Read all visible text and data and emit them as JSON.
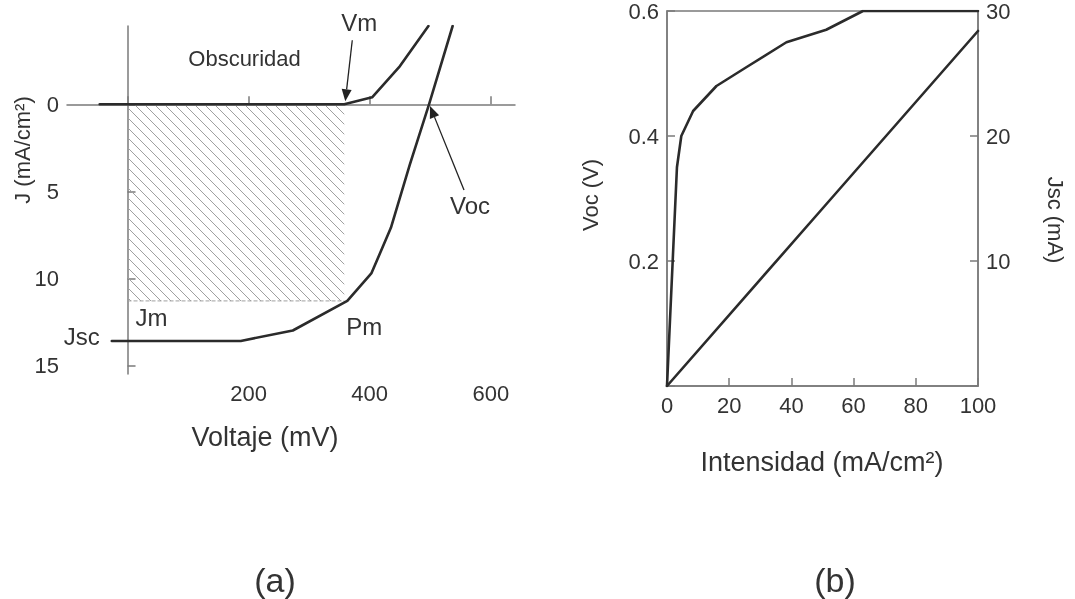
{
  "chart_data": [
    {
      "type": "line",
      "title": "(a)",
      "xlabel": "Voltaje (mV)",
      "ylabel": "J (mA/cm²)",
      "xlim": [
        -100,
        640
      ],
      "ylim": [
        15.5,
        -4.5
      ],
      "xticks": [
        {
          "value": 0,
          "label": null
        },
        200,
        400,
        600
      ],
      "yticks": [
        0,
        5,
        10,
        15
      ],
      "series": [
        {
          "type": "area",
          "color": "#a0a0a0",
          "x": [
            0,
            358
          ],
          "values": [
            11.3,
            11.3
          ]
        },
        {
          "name": "Obscuridad",
          "color": "#2b2b2b",
          "x": [
            -46,
            0,
            358,
            404,
            450,
            497
          ],
          "values": [
            0,
            0,
            0,
            -0.4,
            -2.2,
            -4.5
          ]
        },
        {
          "color": "#2b2b2b",
          "x": [
            -26,
            187,
            273,
            363,
            403,
            435,
            466,
            498,
            537
          ],
          "values": [
            13.6,
            13.6,
            13.0,
            11.3,
            9.7,
            7.1,
            3.5,
            0,
            -4.5
          ]
        }
      ],
      "annotations": [
        {
          "text": "Vm",
          "x": 358,
          "y": 0
        },
        "Voc",
        {
          "text": "Jm",
          "x": 0,
          "y": 11.3
        },
        {
          "text": "Jsc",
          "x": -26,
          "y": 13.6
        },
        {
          "text": "Pm",
          "x": 358,
          "y": 11.3
        }
      ]
    },
    {
      "type": "line",
      "title": "(b)",
      "xlabel": "Intensidad (mA/cm²)",
      "ylabel": "Voc (V)",
      "y2label": "Jsc (mA)",
      "xlim": [
        0,
        100
      ],
      "ylim": [
        0,
        0.6
      ],
      "y2lim": [
        0,
        30
      ],
      "xticks": [
        0,
        20,
        40,
        60,
        80,
        100
      ],
      "yticks": [
        {
          "value": 0,
          "label": null
        },
        0.2,
        0.4,
        0.6
      ],
      "y2ticks": [
        {
          "value": 0,
          "label": null
        },
        10,
        20,
        30
      ],
      "series": [
        {
          "color": "#2b2b2b",
          "x": [
            0,
            3.2,
            4.6,
            8.4,
            15.9,
            25.5,
            38.4,
            51.2,
            63,
            100
          ],
          "values": [
            0,
            0.35,
            0.4,
            0.44,
            0.48,
            0.51,
            0.55,
            0.57,
            0.6,
            0.6
          ]
        },
        {
          "color": "#2b2b2b",
          "axis": "y2",
          "x": [
            0,
            50,
            100
          ],
          "values": [
            0,
            14.2,
            28.4
          ]
        }
      ]
    }
  ]
}
